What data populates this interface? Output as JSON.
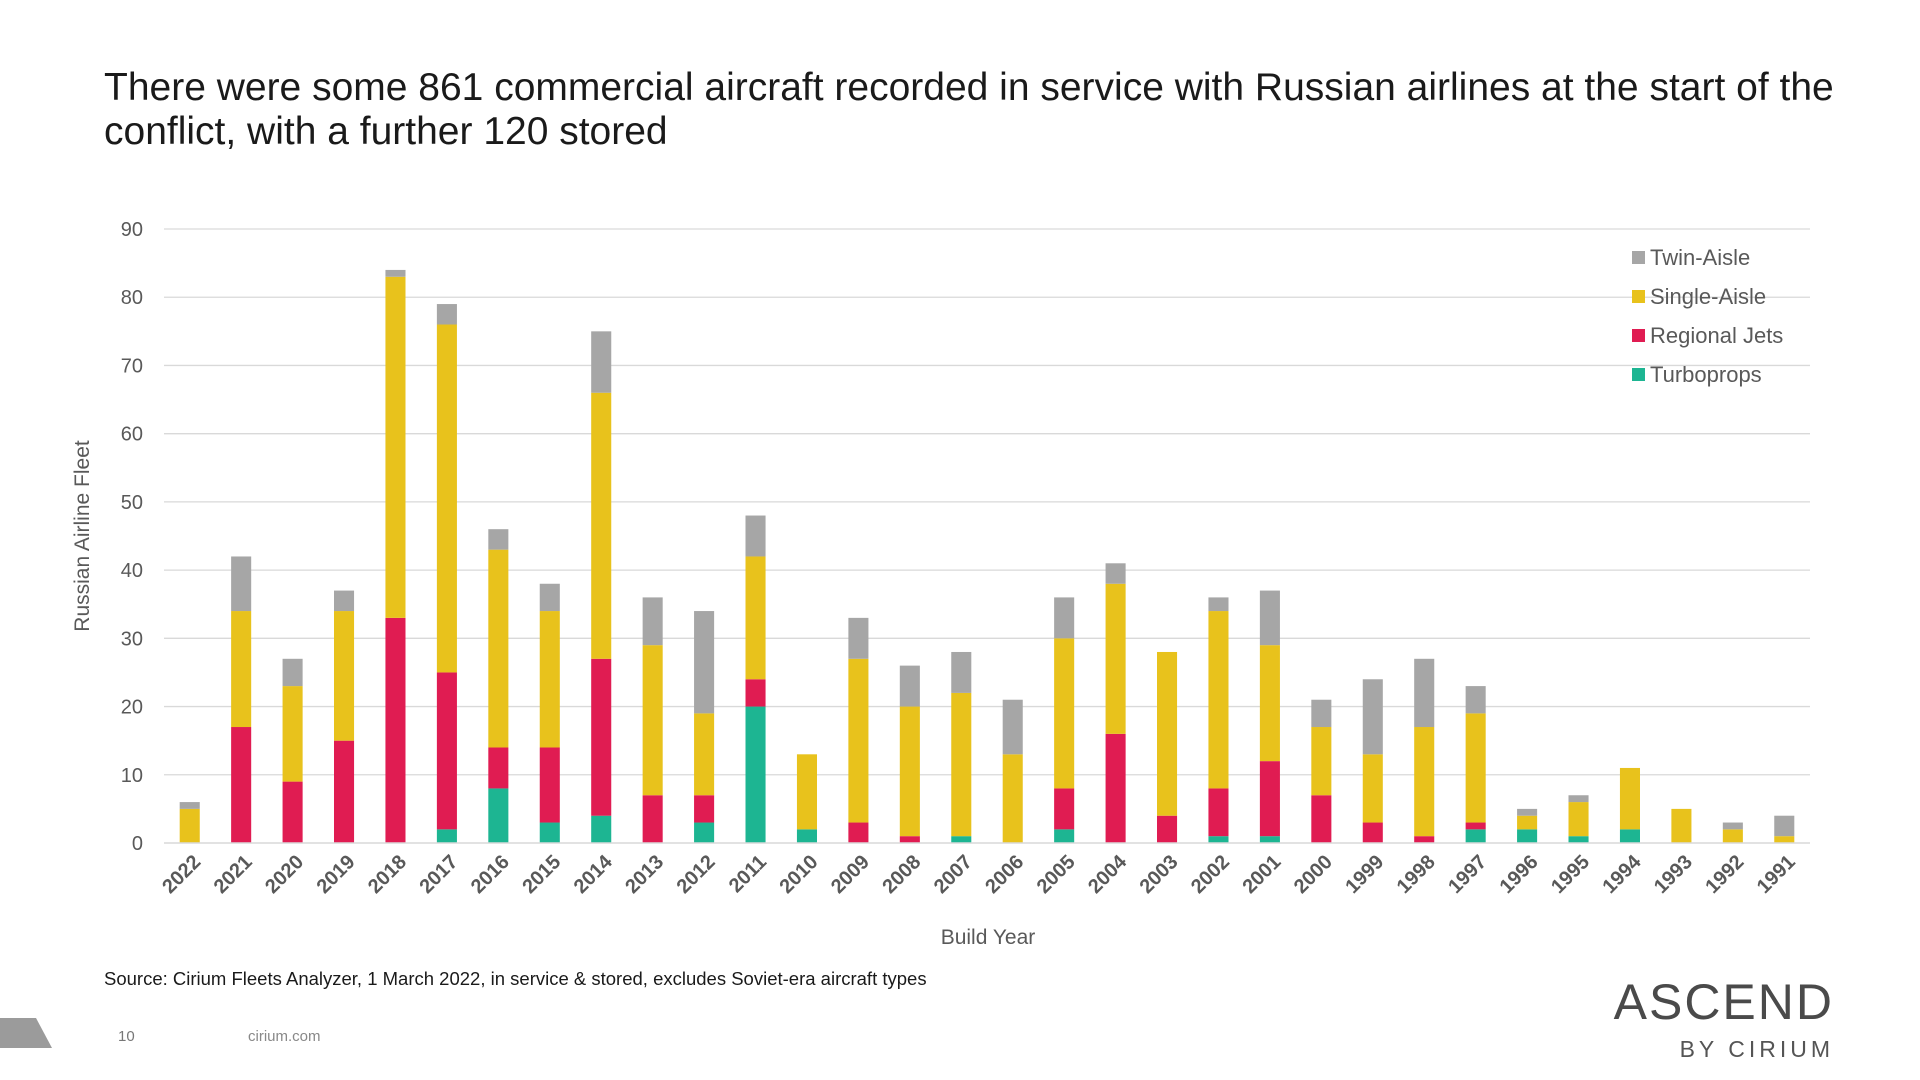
{
  "title": "There were some 861 commercial aircraft recorded in service with Russian airlines at the start of the conflict, with a further 120 stored",
  "source": "Source: Cirium Fleets Analyzer, 1 March 2022, in service & stored, excludes Soviet-era aircraft types",
  "footer": {
    "page_number": "10",
    "site": "cirium.com"
  },
  "logo": {
    "main": "ASCEND",
    "sub": "BY CIRIUM"
  },
  "colors": {
    "twin_aisle": "#a6a6a6",
    "single_aisle": "#e8c21c",
    "regional_jets": "#e01c52",
    "turboprops": "#1db592",
    "gridline": "#d9d9d9",
    "corner_tab": "#9b9b9b"
  },
  "chart_data": {
    "type": "bar",
    "stacked": true,
    "xlabel": "Build Year",
    "ylabel": "Russian Airline Fleet",
    "ylim": [
      0,
      90
    ],
    "yticks": [
      0,
      10,
      20,
      30,
      40,
      50,
      60,
      70,
      80,
      90
    ],
    "grid": true,
    "legend_position": "top-right",
    "categories": [
      "2022",
      "2021",
      "2020",
      "2019",
      "2018",
      "2017",
      "2016",
      "2015",
      "2014",
      "2013",
      "2012",
      "2011",
      "2010",
      "2009",
      "2008",
      "2007",
      "2006",
      "2005",
      "2004",
      "2003",
      "2002",
      "2001",
      "2000",
      "1999",
      "1998",
      "1997",
      "1996",
      "1995",
      "1994",
      "1993",
      "1992",
      "1991"
    ],
    "series": [
      {
        "name": "Turboprops",
        "color": "#1db592",
        "values": [
          0,
          0,
          0,
          0,
          0,
          2,
          8,
          3,
          4,
          0,
          3,
          20,
          2,
          0,
          0,
          1,
          0,
          2,
          0,
          0,
          1,
          1,
          0,
          0,
          0,
          2,
          2,
          1,
          2,
          0,
          0,
          0
        ]
      },
      {
        "name": "Regional Jets",
        "color": "#e01c52",
        "values": [
          0,
          17,
          9,
          15,
          33,
          23,
          6,
          11,
          23,
          7,
          4,
          4,
          0,
          3,
          1,
          0,
          0,
          6,
          16,
          4,
          7,
          11,
          7,
          3,
          1,
          1,
          0,
          0,
          0,
          0,
          0,
          0
        ]
      },
      {
        "name": "Single-Aisle",
        "color": "#e8c21c",
        "values": [
          5,
          17,
          14,
          19,
          50,
          51,
          29,
          20,
          39,
          22,
          12,
          18,
          11,
          24,
          19,
          21,
          13,
          22,
          22,
          24,
          26,
          17,
          10,
          10,
          16,
          16,
          2,
          5,
          9,
          5,
          2,
          1
        ]
      },
      {
        "name": "Twin-Aisle",
        "color": "#a6a6a6",
        "values": [
          1,
          8,
          4,
          3,
          1,
          3,
          3,
          4,
          9,
          7,
          15,
          6,
          0,
          6,
          6,
          6,
          8,
          6,
          3,
          0,
          2,
          8,
          4,
          11,
          10,
          4,
          1,
          1,
          0,
          0,
          1,
          3
        ]
      }
    ],
    "legend_order": [
      "Twin-Aisle",
      "Single-Aisle",
      "Regional Jets",
      "Turboprops"
    ]
  }
}
